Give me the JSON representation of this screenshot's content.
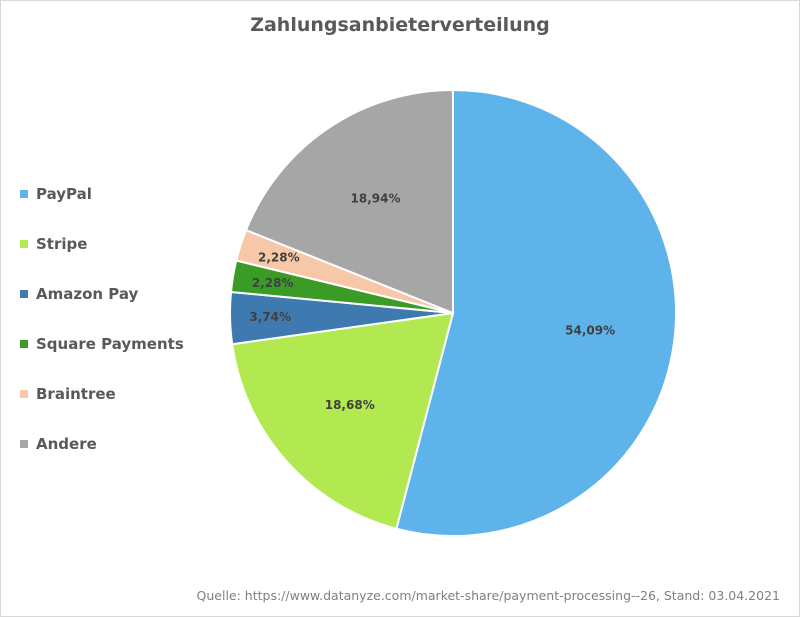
{
  "chart_data": {
    "type": "pie",
    "title": "Zahlungsanbieterverteilung",
    "categories": [
      "PayPal",
      "Stripe",
      "Amazon Pay",
      "Square Payments",
      "Braintree",
      "Andere"
    ],
    "values": [
      54.09,
      18.68,
      3.74,
      2.28,
      2.28,
      18.94
    ],
    "value_labels": [
      "54,09%",
      "18,68%",
      "3,74%",
      "2,28%",
      "2,28%",
      "18,94%"
    ],
    "colors": [
      "#5DB3EA",
      "#B2E850",
      "#3E7AB0",
      "#3A9B26",
      "#F6C8A8",
      "#A6A6A6"
    ],
    "legend_position": "left",
    "start_angle": "12 o'clock, clockwise"
  },
  "source_note": "Quelle: https://www.datanyze.com/market-share/payment-processing--26, Stand: 03.04.2021"
}
